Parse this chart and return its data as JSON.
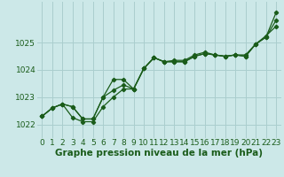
{
  "xlabel": "Graphe pression niveau de la mer (hPa)",
  "xlim": [
    -0.5,
    23.5
  ],
  "ylim": [
    1021.5,
    1026.5
  ],
  "yticks": [
    1022,
    1023,
    1024,
    1025
  ],
  "xticks": [
    0,
    1,
    2,
    3,
    4,
    5,
    6,
    7,
    8,
    9,
    10,
    11,
    12,
    13,
    14,
    15,
    16,
    17,
    18,
    19,
    20,
    21,
    22,
    23
  ],
  "bg_color": "#cce8e8",
  "grid_color": "#aacece",
  "line_color": "#1a5c1a",
  "series1": {
    "x": [
      0,
      1,
      2,
      3,
      4,
      5,
      6,
      7,
      8,
      9,
      10,
      11,
      12,
      13,
      14,
      15,
      16,
      17,
      18,
      19,
      20,
      21,
      22,
      23
    ],
    "y": [
      1022.3,
      1022.6,
      1022.75,
      1022.65,
      1022.2,
      1022.2,
      1023.0,
      1023.65,
      1023.65,
      1023.3,
      1024.05,
      1024.45,
      1024.3,
      1024.3,
      1024.3,
      1024.5,
      1024.6,
      1024.55,
      1024.5,
      1024.55,
      1024.5,
      1024.95,
      1025.2,
      1026.1
    ]
  },
  "series2": {
    "x": [
      0,
      1,
      2,
      3,
      4,
      5,
      6,
      7,
      8,
      9,
      10,
      11,
      12,
      13,
      14,
      15,
      16,
      17,
      18,
      19,
      20,
      21,
      22,
      23
    ],
    "y": [
      1022.3,
      1022.6,
      1022.75,
      1022.25,
      1022.1,
      1022.1,
      1022.65,
      1023.0,
      1023.3,
      1023.3,
      1024.05,
      1024.45,
      1024.3,
      1024.35,
      1024.35,
      1024.55,
      1024.65,
      1024.55,
      1024.5,
      1024.55,
      1024.55,
      1024.95,
      1025.25,
      1025.6
    ]
  },
  "series3": {
    "x": [
      0,
      1,
      2,
      3,
      4,
      5,
      6,
      7,
      8,
      9,
      10,
      11,
      12,
      13,
      14,
      15,
      16,
      17,
      18,
      19,
      20,
      21,
      22,
      23
    ],
    "y": [
      1022.3,
      1022.6,
      1022.75,
      1022.65,
      1022.2,
      1022.2,
      1023.0,
      1023.25,
      1023.45,
      1023.3,
      1024.05,
      1024.45,
      1024.3,
      1024.3,
      1024.3,
      1024.5,
      1024.6,
      1024.55,
      1024.5,
      1024.55,
      1024.5,
      1024.95,
      1025.2,
      1025.82
    ]
  },
  "tick_fontsize": 6.5,
  "xlabel_fontsize": 7.5,
  "tick_color": "#1a5c1a",
  "xlabel_color": "#1a5c1a"
}
